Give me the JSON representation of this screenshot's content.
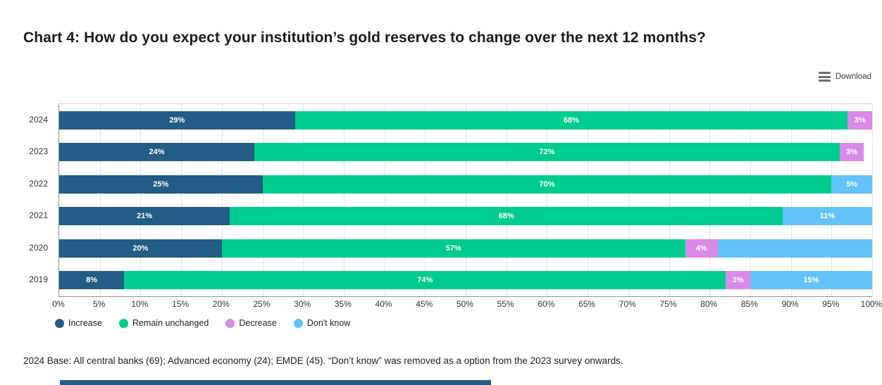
{
  "title": "Chart 4: How do you expect your institution’s gold reserves to change over the next 12 months?",
  "toolbar": {
    "download_label": "Download",
    "download_icon": "hamburger-menu-icon"
  },
  "chart_data": {
    "type": "bar",
    "orientation": "horizontal",
    "stacked": true,
    "title": "Chart 4: How do you expect your institution’s gold reserves to change over the next 12 months?",
    "xlabel": "",
    "ylabel": "",
    "xlim": [
      0,
      100
    ],
    "grid": "vertical-dotted",
    "legend_position": "bottom",
    "categories": [
      "2024",
      "2023",
      "2022",
      "2021",
      "2020",
      "2019"
    ],
    "series": [
      {
        "name": "Increase",
        "color": "#235c85",
        "values": [
          29,
          24,
          25,
          21,
          20,
          8
        ]
      },
      {
        "name": "Remain unchanged",
        "color": "#00cc8f",
        "values": [
          68,
          72,
          70,
          68,
          57,
          74
        ]
      },
      {
        "name": "Decrease",
        "color": "#d98ae8",
        "values": [
          3,
          3,
          0,
          0,
          4,
          3
        ]
      },
      {
        "name": "Don't know",
        "color": "#63c3f8",
        "values": [
          0,
          0,
          5,
          11,
          19,
          15
        ]
      }
    ],
    "hidden_segment_labels": [
      {
        "series": "Don't know",
        "category": "2020"
      }
    ],
    "x_ticks": [
      "0%",
      "5%",
      "10%",
      "15%",
      "20%",
      "25%",
      "30%",
      "35%",
      "40%",
      "45%",
      "50%",
      "55%",
      "60%",
      "65%",
      "70%",
      "75%",
      "80%",
      "85%",
      "90%",
      "95%",
      "100%"
    ],
    "bar_label_format": "{value}%"
  },
  "footnote": "2024 Base: All central banks (69); Advanced economy (24); EMDE (45). “Don’t know” was removed as a option from the 2023 survey onwards.",
  "partial_next_chart": {
    "visible": true,
    "color": "#235c85"
  }
}
